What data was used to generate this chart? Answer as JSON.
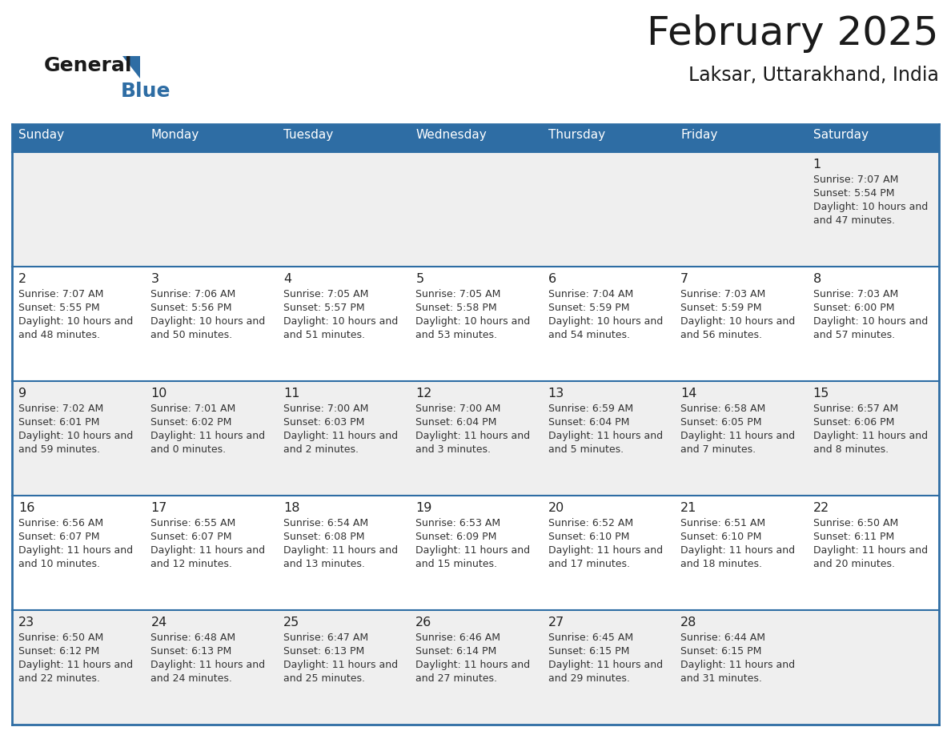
{
  "title": "February 2025",
  "subtitle": "Laksar, Uttarakhand, India",
  "header_bg": "#2E6DA4",
  "header_text": "#FFFFFF",
  "day_names": [
    "Sunday",
    "Monday",
    "Tuesday",
    "Wednesday",
    "Thursday",
    "Friday",
    "Saturday"
  ],
  "cell_bg_even": "#EFEFEF",
  "cell_bg_odd": "#FFFFFF",
  "border_color": "#2E6DA4",
  "text_color": "#333333",
  "day_num_color": "#222222",
  "days": [
    {
      "day": 1,
      "col": 6,
      "row": 0,
      "sunrise": "7:07 AM",
      "sunset": "5:54 PM",
      "daylight": "10 hours and 47 minutes"
    },
    {
      "day": 2,
      "col": 0,
      "row": 1,
      "sunrise": "7:07 AM",
      "sunset": "5:55 PM",
      "daylight": "10 hours and 48 minutes"
    },
    {
      "day": 3,
      "col": 1,
      "row": 1,
      "sunrise": "7:06 AM",
      "sunset": "5:56 PM",
      "daylight": "10 hours and 50 minutes"
    },
    {
      "day": 4,
      "col": 2,
      "row": 1,
      "sunrise": "7:05 AM",
      "sunset": "5:57 PM",
      "daylight": "10 hours and 51 minutes"
    },
    {
      "day": 5,
      "col": 3,
      "row": 1,
      "sunrise": "7:05 AM",
      "sunset": "5:58 PM",
      "daylight": "10 hours and 53 minutes"
    },
    {
      "day": 6,
      "col": 4,
      "row": 1,
      "sunrise": "7:04 AM",
      "sunset": "5:59 PM",
      "daylight": "10 hours and 54 minutes"
    },
    {
      "day": 7,
      "col": 5,
      "row": 1,
      "sunrise": "7:03 AM",
      "sunset": "5:59 PM",
      "daylight": "10 hours and 56 minutes"
    },
    {
      "day": 8,
      "col": 6,
      "row": 1,
      "sunrise": "7:03 AM",
      "sunset": "6:00 PM",
      "daylight": "10 hours and 57 minutes"
    },
    {
      "day": 9,
      "col": 0,
      "row": 2,
      "sunrise": "7:02 AM",
      "sunset": "6:01 PM",
      "daylight": "10 hours and 59 minutes"
    },
    {
      "day": 10,
      "col": 1,
      "row": 2,
      "sunrise": "7:01 AM",
      "sunset": "6:02 PM",
      "daylight": "11 hours and 0 minutes"
    },
    {
      "day": 11,
      "col": 2,
      "row": 2,
      "sunrise": "7:00 AM",
      "sunset": "6:03 PM",
      "daylight": "11 hours and 2 minutes"
    },
    {
      "day": 12,
      "col": 3,
      "row": 2,
      "sunrise": "7:00 AM",
      "sunset": "6:04 PM",
      "daylight": "11 hours and 3 minutes"
    },
    {
      "day": 13,
      "col": 4,
      "row": 2,
      "sunrise": "6:59 AM",
      "sunset": "6:04 PM",
      "daylight": "11 hours and 5 minutes"
    },
    {
      "day": 14,
      "col": 5,
      "row": 2,
      "sunrise": "6:58 AM",
      "sunset": "6:05 PM",
      "daylight": "11 hours and 7 minutes"
    },
    {
      "day": 15,
      "col": 6,
      "row": 2,
      "sunrise": "6:57 AM",
      "sunset": "6:06 PM",
      "daylight": "11 hours and 8 minutes"
    },
    {
      "day": 16,
      "col": 0,
      "row": 3,
      "sunrise": "6:56 AM",
      "sunset": "6:07 PM",
      "daylight": "11 hours and 10 minutes"
    },
    {
      "day": 17,
      "col": 1,
      "row": 3,
      "sunrise": "6:55 AM",
      "sunset": "6:07 PM",
      "daylight": "11 hours and 12 minutes"
    },
    {
      "day": 18,
      "col": 2,
      "row": 3,
      "sunrise": "6:54 AM",
      "sunset": "6:08 PM",
      "daylight": "11 hours and 13 minutes"
    },
    {
      "day": 19,
      "col": 3,
      "row": 3,
      "sunrise": "6:53 AM",
      "sunset": "6:09 PM",
      "daylight": "11 hours and 15 minutes"
    },
    {
      "day": 20,
      "col": 4,
      "row": 3,
      "sunrise": "6:52 AM",
      "sunset": "6:10 PM",
      "daylight": "11 hours and 17 minutes"
    },
    {
      "day": 21,
      "col": 5,
      "row": 3,
      "sunrise": "6:51 AM",
      "sunset": "6:10 PM",
      "daylight": "11 hours and 18 minutes"
    },
    {
      "day": 22,
      "col": 6,
      "row": 3,
      "sunrise": "6:50 AM",
      "sunset": "6:11 PM",
      "daylight": "11 hours and 20 minutes"
    },
    {
      "day": 23,
      "col": 0,
      "row": 4,
      "sunrise": "6:50 AM",
      "sunset": "6:12 PM",
      "daylight": "11 hours and 22 minutes"
    },
    {
      "day": 24,
      "col": 1,
      "row": 4,
      "sunrise": "6:48 AM",
      "sunset": "6:13 PM",
      "daylight": "11 hours and 24 minutes"
    },
    {
      "day": 25,
      "col": 2,
      "row": 4,
      "sunrise": "6:47 AM",
      "sunset": "6:13 PM",
      "daylight": "11 hours and 25 minutes"
    },
    {
      "day": 26,
      "col": 3,
      "row": 4,
      "sunrise": "6:46 AM",
      "sunset": "6:14 PM",
      "daylight": "11 hours and 27 minutes"
    },
    {
      "day": 27,
      "col": 4,
      "row": 4,
      "sunrise": "6:45 AM",
      "sunset": "6:15 PM",
      "daylight": "11 hours and 29 minutes"
    },
    {
      "day": 28,
      "col": 5,
      "row": 4,
      "sunrise": "6:44 AM",
      "sunset": "6:15 PM",
      "daylight": "11 hours and 31 minutes"
    }
  ],
  "num_rows": 5,
  "num_cols": 7
}
